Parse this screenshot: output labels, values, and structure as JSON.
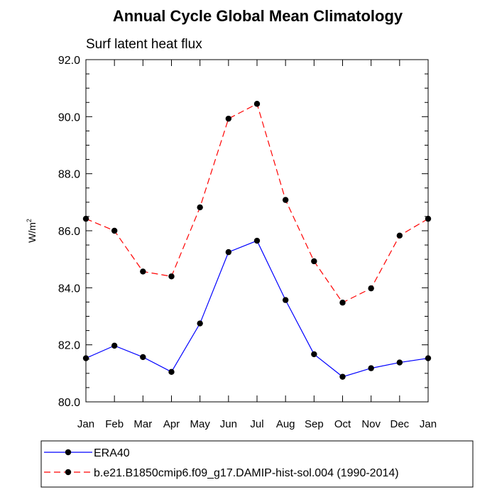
{
  "chart_data": {
    "type": "line",
    "title": "Annual Cycle Global Mean Climatology",
    "subtitle": "Surf latent heat flux",
    "ylabel": "W/m",
    "ylabel_superscript": "2",
    "categories": [
      "Jan",
      "Feb",
      "Mar",
      "Apr",
      "May",
      "Jun",
      "Jul",
      "Aug",
      "Sep",
      "Oct",
      "Nov",
      "Dec",
      "Jan"
    ],
    "ylim": [
      80.0,
      92.0
    ],
    "yticks": [
      "80.0",
      "82.0",
      "84.0",
      "86.0",
      "88.0",
      "90.0",
      "92.0"
    ],
    "grid": false,
    "legend_position": "bottom",
    "series": [
      {
        "name": "ERA40",
        "color": "#0000ff",
        "style": "solid",
        "marker": "circle",
        "values": [
          81.53,
          81.97,
          81.57,
          81.05,
          82.75,
          85.25,
          85.65,
          83.57,
          81.67,
          80.88,
          81.18,
          81.38,
          81.53
        ]
      },
      {
        "name": "b.e21.B1850cmip6.f09_g17.DAMIP-hist-sol.004 (1990-2014)",
        "color": "#ff0000",
        "style": "dashed",
        "marker": "circle",
        "values": [
          86.42,
          86.0,
          84.57,
          84.4,
          86.82,
          89.93,
          90.45,
          87.08,
          84.93,
          83.48,
          83.98,
          85.83,
          86.42
        ]
      }
    ]
  }
}
